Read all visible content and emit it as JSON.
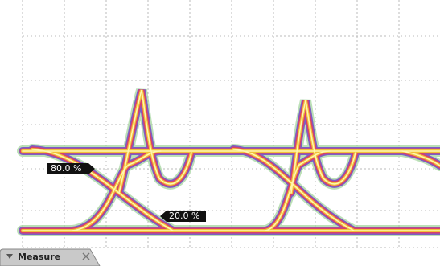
{
  "markers": [
    {
      "label": "80.0 %"
    },
    {
      "label": "20.0 %"
    }
  ],
  "tab": {
    "label": "Measure"
  }
}
